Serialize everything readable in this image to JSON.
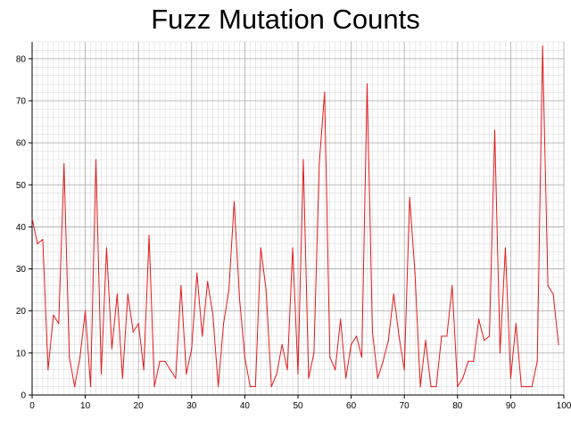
{
  "chart_data": {
    "type": "line",
    "title": "Fuzz Mutation Counts",
    "xlabel": "",
    "ylabel": "",
    "xlim": [
      0,
      100
    ],
    "ylim": [
      0,
      84
    ],
    "x_ticks": [
      0,
      10,
      20,
      30,
      40,
      50,
      60,
      70,
      80,
      90,
      100
    ],
    "y_ticks": [
      0,
      10,
      20,
      30,
      40,
      50,
      60,
      70,
      80
    ],
    "grid": true,
    "series": [
      {
        "color": "#e41a1c",
        "x": [
          0,
          1,
          2,
          3,
          4,
          5,
          6,
          7,
          8,
          9,
          10,
          11,
          12,
          13,
          14,
          15,
          16,
          17,
          18,
          19,
          20,
          21,
          22,
          23,
          24,
          25,
          26,
          27,
          28,
          29,
          30,
          31,
          32,
          33,
          34,
          35,
          36,
          37,
          38,
          39,
          40,
          41,
          42,
          43,
          44,
          45,
          46,
          47,
          48,
          49,
          50,
          51,
          52,
          53,
          54,
          55,
          56,
          57,
          58,
          59,
          60,
          61,
          62,
          63,
          64,
          65,
          66,
          67,
          68,
          69,
          70,
          71,
          72,
          73,
          74,
          75,
          76,
          77,
          78,
          79,
          80,
          81,
          82,
          83,
          84,
          85,
          86,
          87,
          88,
          89,
          90,
          91,
          92,
          93,
          94,
          95,
          96,
          97,
          98,
          99
        ],
        "values": [
          42,
          36,
          37,
          6,
          19,
          17,
          55,
          9,
          2,
          9,
          20,
          2,
          56,
          5,
          35,
          11,
          24,
          4,
          24,
          15,
          17,
          6,
          38,
          2,
          8,
          8,
          6,
          4,
          26,
          5,
          11,
          29,
          14,
          27,
          19,
          2,
          17,
          25,
          46,
          23,
          9,
          2,
          2,
          35,
          25,
          2,
          5,
          12,
          6,
          35,
          5,
          56,
          4,
          10,
          55,
          72,
          9,
          6,
          18,
          4,
          12,
          14,
          9,
          74,
          15,
          4,
          8,
          13,
          24,
          14,
          6,
          47,
          29,
          2,
          13,
          2,
          2,
          14,
          14,
          26,
          2,
          4,
          8,
          8,
          18,
          13,
          14,
          63,
          10,
          35,
          4,
          17,
          2,
          2,
          2,
          8,
          83,
          26,
          24,
          12
        ]
      }
    ]
  }
}
